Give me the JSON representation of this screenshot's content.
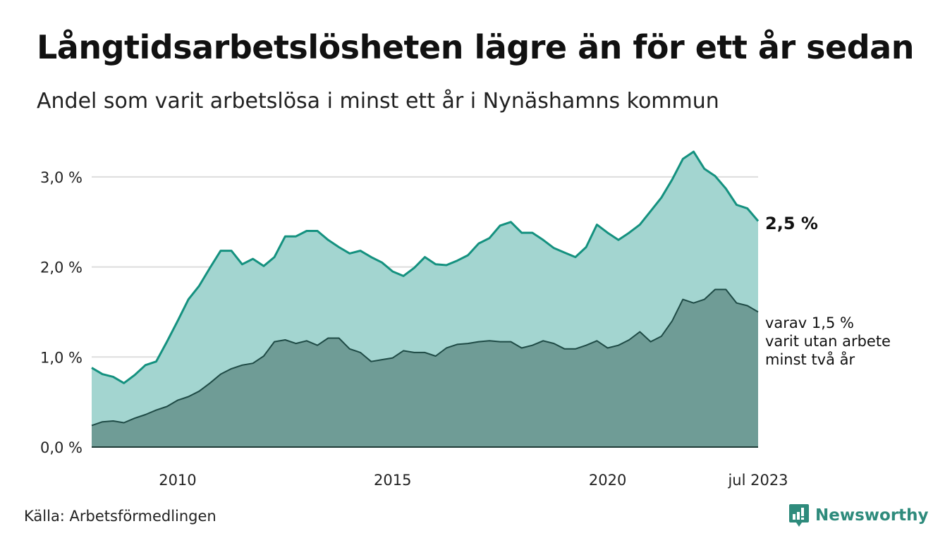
{
  "title": "Långtidsarbetslösheten lägre än för ett år sedan",
  "subtitle": "Andel som varit arbetslösa i minst ett år i Nynäshamns kommun",
  "source": "Källa: Arbetsförmedlingen",
  "brand": "Newsworthy",
  "colors": {
    "upper_fill": "#a3d5d0",
    "upper_line": "#14917f",
    "lower_fill": "#6f9c96",
    "lower_line": "#1e4a45",
    "grid": "#dddddd",
    "brand": "#2e8b7c"
  },
  "chart_data": {
    "type": "area",
    "title": "Långtidsarbetslösheten lägre än för ett år sedan",
    "xlabel": "",
    "ylabel": "",
    "x_range": [
      2008.0,
      2023.5
    ],
    "ylim": [
      0,
      3.3
    ],
    "grid": true,
    "y_ticks": [
      {
        "value": 0,
        "label": "0,0 %"
      },
      {
        "value": 1,
        "label": "1,0 %"
      },
      {
        "value": 2,
        "label": "2,0 %"
      },
      {
        "value": 3,
        "label": "3,0 %"
      }
    ],
    "x_ticks": [
      {
        "value": 2010,
        "label": "2010"
      },
      {
        "value": 2015,
        "label": "2015"
      },
      {
        "value": 2020,
        "label": "2020"
      },
      {
        "value": 2023.5,
        "label": "jul 2023"
      }
    ],
    "x_step": 0.25,
    "series": [
      {
        "name": "Minst ett år",
        "end_label": "2,5 %",
        "values": [
          0.88,
          0.81,
          0.78,
          0.71,
          0.8,
          0.91,
          0.95,
          1.17,
          1.4,
          1.64,
          1.79,
          1.99,
          2.18,
          2.18,
          2.03,
          2.09,
          2.01,
          2.11,
          2.34,
          2.34,
          2.4,
          2.4,
          2.3,
          2.22,
          2.15,
          2.18,
          2.11,
          2.05,
          1.95,
          1.9,
          1.99,
          2.11,
          2.03,
          2.02,
          2.07,
          2.13,
          2.26,
          2.32,
          2.46,
          2.5,
          2.38,
          2.38,
          2.3,
          2.21,
          2.16,
          2.11,
          2.22,
          2.47,
          2.38,
          2.3,
          2.38,
          2.47,
          2.62,
          2.77,
          2.97,
          3.2,
          3.28,
          3.09,
          3.01,
          2.87,
          2.69,
          2.65,
          2.51
        ]
      },
      {
        "name": "Minst två år",
        "end_label_lines": [
          "varav 1,5 %",
          "varit utan arbete",
          "minst två år"
        ],
        "values": [
          0.24,
          0.28,
          0.29,
          0.27,
          0.32,
          0.36,
          0.41,
          0.45,
          0.52,
          0.56,
          0.62,
          0.71,
          0.81,
          0.87,
          0.91,
          0.93,
          1.01,
          1.17,
          1.19,
          1.15,
          1.18,
          1.13,
          1.21,
          1.21,
          1.09,
          1.05,
          0.95,
          0.97,
          0.99,
          1.07,
          1.05,
          1.05,
          1.01,
          1.1,
          1.14,
          1.15,
          1.17,
          1.18,
          1.17,
          1.17,
          1.1,
          1.13,
          1.18,
          1.15,
          1.09,
          1.09,
          1.13,
          1.18,
          1.1,
          1.13,
          1.19,
          1.28,
          1.17,
          1.23,
          1.4,
          1.64,
          1.6,
          1.64,
          1.75,
          1.75,
          1.6,
          1.57,
          1.5
        ]
      }
    ]
  }
}
